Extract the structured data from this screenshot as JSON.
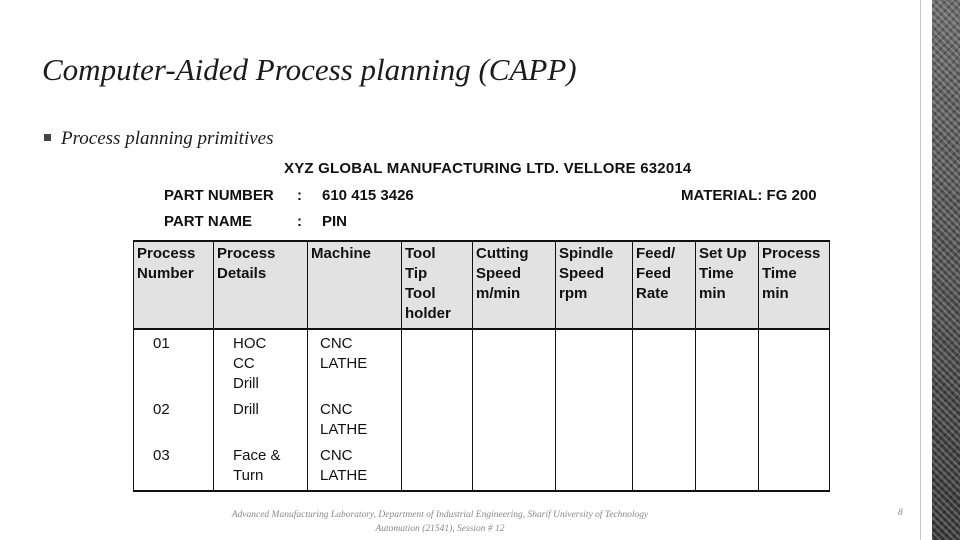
{
  "slide": {
    "title": "Computer-Aided Process planning (CAPP)",
    "bullet": "Process planning primitives",
    "footer_line1": "Advanced Manufacturing Laboratory, Department of Industrial Engineering, Sharif University of Technology",
    "footer_line2": "Automation (21541), Session # 12",
    "page_number": "8"
  },
  "sheet": {
    "company": "XYZ GLOBAL MANUFACTURING LTD. VELLORE 632014",
    "part_number_label": "PART NUMBER",
    "part_number_value": "610 415 3426",
    "part_name_label": "PART NAME",
    "part_name_value": "PIN",
    "colon": ":",
    "material_label": "MATERIAL: FG 200",
    "headers": [
      [
        "Process",
        "Number"
      ],
      [
        "Process",
        "Details"
      ],
      [
        "Machine"
      ],
      [
        "Tool",
        "Tip",
        "Tool",
        "holder"
      ],
      [
        "Cutting",
        "Speed",
        "m/min"
      ],
      [
        "Spindle",
        "Speed",
        "rpm"
      ],
      [
        "Feed/",
        "Feed",
        "Rate"
      ],
      [
        "Set Up",
        "Time",
        "min"
      ],
      [
        "Process",
        "Time",
        "min"
      ]
    ],
    "rows": [
      {
        "number": "01",
        "details": [
          "HOC",
          "CC",
          "Drill"
        ],
        "machine": [
          "CNC",
          "LATHE"
        ]
      },
      {
        "number": "02",
        "details": [
          "Drill"
        ],
        "machine": [
          "CNC",
          "LATHE"
        ]
      },
      {
        "number": "03",
        "details": [
          "Face &",
          "Turn"
        ],
        "machine": [
          "CNC",
          "LATHE"
        ]
      }
    ]
  }
}
